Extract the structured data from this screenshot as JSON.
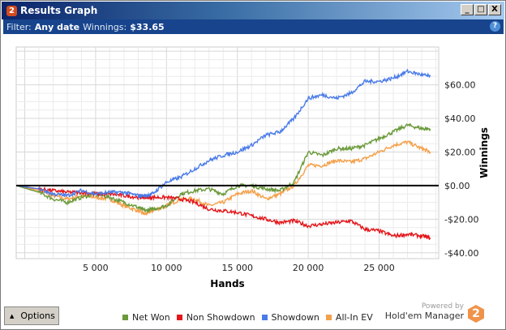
{
  "window": {
    "title": "Results Graph",
    "logo": "2",
    "minimize": "_",
    "maximize": "□",
    "close": "X"
  },
  "filter": {
    "label": "Filter:",
    "date": "Any date",
    "winnings_label": "Winnings:",
    "winnings": "$33.65",
    "help": "?"
  },
  "options_label": "Options",
  "branding": {
    "powered": "Powered by",
    "product": "Hold'em Manager",
    "logo": "2"
  },
  "chart_data": {
    "type": "line",
    "xlabel": "Hands",
    "ylabel": "Winnings",
    "xlim": [
      -600,
      29200
    ],
    "ylim": [
      -43.5,
      82.5
    ],
    "xticks": [
      5000,
      10000,
      15000,
      20000,
      25000
    ],
    "xtick_labels": [
      "5 000",
      "10 000",
      "15 000",
      "20 000",
      "25 000"
    ],
    "yticks": [
      60,
      40,
      20,
      0,
      -20,
      -40
    ],
    "ytick_labels": [
      "$60.00",
      "$40.00",
      "$20.00",
      "$0.00",
      "-$20.00",
      "-$40.00"
    ],
    "grid": true,
    "legend": "bottom",
    "x": [
      -600,
      1000,
      2000,
      3000,
      4000,
      5000,
      6000,
      7000,
      8000,
      8500,
      9000,
      10000,
      11000,
      12000,
      13000,
      14000,
      15000,
      16000,
      17000,
      18000,
      19000,
      20000,
      21000,
      22000,
      23000,
      24000,
      25000,
      26000,
      27000,
      28000,
      28600
    ],
    "series": [
      {
        "name": "Net Won",
        "color": "#6a9a3a",
        "values": [
          0,
          -4,
          -8,
          -10,
          -7,
          -5,
          -7,
          -10,
          -13,
          -15,
          -14,
          -12,
          -5,
          -3,
          -2,
          -5,
          0,
          0,
          -2,
          -3,
          2,
          20,
          18,
          22,
          22,
          24,
          28,
          32,
          36,
          34,
          33.65
        ]
      },
      {
        "name": "Non Showdown",
        "color": "#e3161b",
        "values": [
          0,
          -2,
          -3,
          -4,
          -4,
          -5,
          -5,
          -6,
          -7,
          -7,
          -7,
          -7,
          -8,
          -10,
          -14,
          -15,
          -16,
          -18,
          -20,
          -22,
          -21,
          -24,
          -23,
          -22,
          -21,
          -26,
          -27,
          -30,
          -29,
          -30,
          -31
        ]
      },
      {
        "name": "Showdown",
        "color": "#4a7be8",
        "values": [
          0,
          -2,
          -5,
          -6,
          -3,
          -5,
          -4,
          -4,
          -6,
          -6,
          -5,
          2,
          5,
          10,
          15,
          18,
          20,
          24,
          30,
          32,
          40,
          52,
          54,
          52,
          55,
          62,
          62,
          64,
          68,
          66,
          65
        ]
      },
      {
        "name": "All-In EV",
        "color": "#f5a04a",
        "values": [
          0,
          -3,
          -6,
          -8,
          -6,
          -7,
          -8,
          -12,
          -15,
          -17,
          -15,
          -12,
          -8,
          -8,
          -12,
          -10,
          -5,
          -3,
          -8,
          -5,
          0,
          12,
          12,
          15,
          14,
          16,
          20,
          24,
          26,
          22,
          20
        ]
      }
    ]
  }
}
